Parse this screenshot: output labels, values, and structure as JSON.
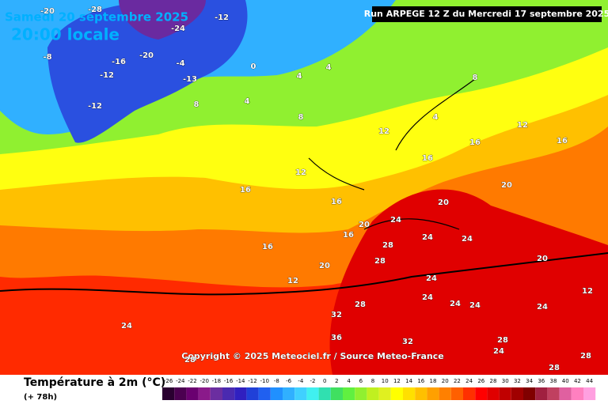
{
  "header": {
    "date": "Samedi 20 septembre 2025",
    "time": "20:00 locale",
    "run": "Run ARPEGE 12 Z du Mercredi 17 septembre 2025"
  },
  "copyright": "Copyright © 2025 Meteociel.fr / Source Meteo-France",
  "legend": {
    "title": "Température à 2m (°C)",
    "lead": "(+ 78h)",
    "ticks": [
      -26,
      -24,
      -22,
      -20,
      -18,
      -16,
      -14,
      -12,
      -10,
      -8,
      -6,
      -4,
      -2,
      0,
      2,
      4,
      6,
      8,
      10,
      12,
      14,
      16,
      18,
      20,
      22,
      24,
      26,
      28,
      30,
      32,
      34,
      36,
      38,
      40,
      42,
      44
    ],
    "colors": [
      "#2a0030",
      "#4b0050",
      "#6a0070",
      "#8a1a8a",
      "#6b2ea0",
      "#4a2ab0",
      "#3020c0",
      "#2040d8",
      "#2060f0",
      "#2090ff",
      "#30b0ff",
      "#40d0ff",
      "#40f0f0",
      "#30e0b0",
      "#40e060",
      "#60f040",
      "#90f030",
      "#c0f020",
      "#e0f020",
      "#ffff00",
      "#ffe000",
      "#ffc000",
      "#ffa000",
      "#ff8000",
      "#ff6000",
      "#ff3000",
      "#ff0000",
      "#e00000",
      "#c00000",
      "#a00000",
      "#800000",
      "#a02040",
      "#c04060",
      "#e060a0",
      "#ff80c0",
      "#ffa0e0"
    ]
  },
  "map": {
    "labels": [
      -28,
      -20,
      -24,
      -12,
      -16,
      -20,
      -8,
      -12,
      -4,
      -13,
      0,
      4,
      4,
      8,
      -12,
      8,
      12,
      12,
      4,
      8,
      4,
      16,
      12,
      16,
      16,
      20,
      16,
      20,
      16,
      20,
      24,
      28,
      24,
      28,
      20,
      24,
      32,
      28,
      24,
      24,
      24,
      28,
      32,
      36,
      24,
      28,
      16,
      12,
      20,
      24,
      28,
      16,
      12,
      24,
      28,
      24
    ]
  }
}
